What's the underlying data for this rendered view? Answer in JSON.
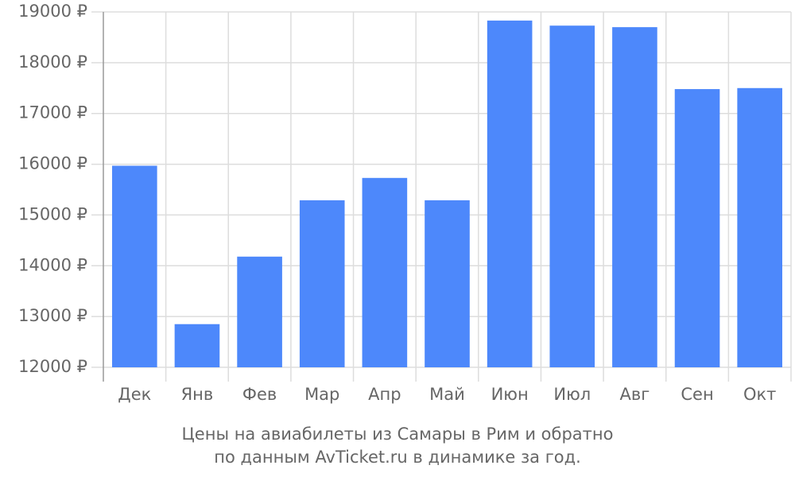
{
  "chart_data": {
    "type": "bar",
    "title": "Цены на авиабилеты из Самары в Рим и обратно",
    "subtitle": "по данным AvTicket.ru в динамике за год.",
    "categories": [
      "Дек",
      "Янв",
      "Фев",
      "Мар",
      "Апр",
      "Май",
      "Июн",
      "Июл",
      "Авг",
      "Сен",
      "Окт"
    ],
    "values": [
      15970,
      12850,
      14180,
      15290,
      15730,
      15290,
      18830,
      18730,
      18700,
      17480,
      17500
    ],
    "color": "#4d88fb",
    "ylim": [
      12000,
      19000
    ],
    "yticks": [
      {
        "value": 12000,
        "label": "12000 ₽"
      },
      {
        "value": 13000,
        "label": "13000 ₽"
      },
      {
        "value": 14000,
        "label": "14000 ₽"
      },
      {
        "value": 15000,
        "label": "15000 ₽"
      },
      {
        "value": 16000,
        "label": "16000 ₽"
      },
      {
        "value": 17000,
        "label": "17000 ₽"
      },
      {
        "value": 18000,
        "label": "18000 ₽"
      },
      {
        "value": 19000,
        "label": "19000 ₽"
      }
    ],
    "grid": true
  }
}
